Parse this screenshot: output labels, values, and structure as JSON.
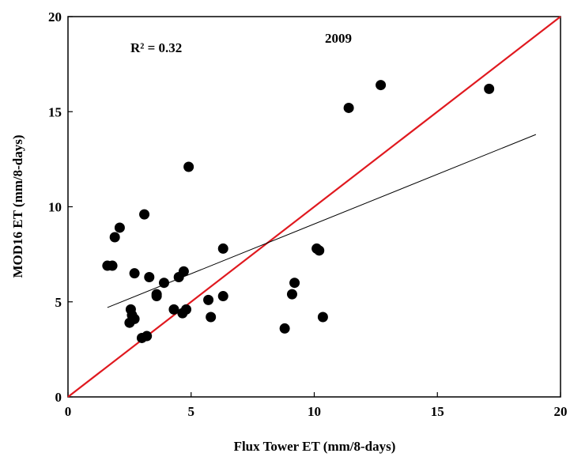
{
  "chart_data": {
    "type": "scatter",
    "title": "",
    "xlabel": "Flux Tower ET (mm/8-days)",
    "ylabel": "MOD16 ET (mm/8-days)",
    "xlim": [
      0,
      20
    ],
    "ylim": [
      0,
      20
    ],
    "xticks": [
      0,
      5,
      10,
      15,
      20
    ],
    "yticks": [
      0,
      5,
      10,
      15,
      20
    ],
    "grid": false,
    "annotations": {
      "r2": "R² = 0.32",
      "year": "2009"
    },
    "colors": {
      "points": "#000000",
      "one_to_one": "#e0191f",
      "trend": "#000000"
    },
    "series": [
      {
        "values": [
          {
            "x": 1.6,
            "y": 6.9
          },
          {
            "x": 1.8,
            "y": 6.9
          },
          {
            "x": 1.9,
            "y": 8.4
          },
          {
            "x": 2.1,
            "y": 8.9
          },
          {
            "x": 2.5,
            "y": 3.9
          },
          {
            "x": 2.55,
            "y": 4.6
          },
          {
            "x": 2.6,
            "y": 4.3
          },
          {
            "x": 2.7,
            "y": 4.1
          },
          {
            "x": 2.7,
            "y": 6.5
          },
          {
            "x": 3.0,
            "y": 3.1
          },
          {
            "x": 3.1,
            "y": 9.6
          },
          {
            "x": 3.2,
            "y": 3.2
          },
          {
            "x": 3.3,
            "y": 6.3
          },
          {
            "x": 3.6,
            "y": 5.4
          },
          {
            "x": 3.6,
            "y": 5.3
          },
          {
            "x": 3.9,
            "y": 6.0
          },
          {
            "x": 4.3,
            "y": 4.6
          },
          {
            "x": 4.5,
            "y": 6.3
          },
          {
            "x": 4.65,
            "y": 4.4
          },
          {
            "x": 4.7,
            "y": 6.6
          },
          {
            "x": 4.8,
            "y": 4.6
          },
          {
            "x": 4.9,
            "y": 12.1
          },
          {
            "x": 5.7,
            "y": 5.1
          },
          {
            "x": 5.8,
            "y": 4.2
          },
          {
            "x": 6.3,
            "y": 7.8
          },
          {
            "x": 6.3,
            "y": 5.3
          },
          {
            "x": 8.8,
            "y": 3.6
          },
          {
            "x": 9.1,
            "y": 5.4
          },
          {
            "x": 9.2,
            "y": 6.0
          },
          {
            "x": 10.1,
            "y": 7.8
          },
          {
            "x": 10.2,
            "y": 7.7
          },
          {
            "x": 10.35,
            "y": 4.2
          },
          {
            "x": 11.4,
            "y": 15.2
          },
          {
            "x": 12.7,
            "y": 16.4
          },
          {
            "x": 17.1,
            "y": 16.2
          }
        ]
      }
    ],
    "reference_line": {
      "from": [
        0,
        0
      ],
      "to": [
        20,
        20
      ]
    },
    "trendline": {
      "from": [
        1.6,
        4.7
      ],
      "to": [
        19.0,
        13.8
      ]
    }
  }
}
